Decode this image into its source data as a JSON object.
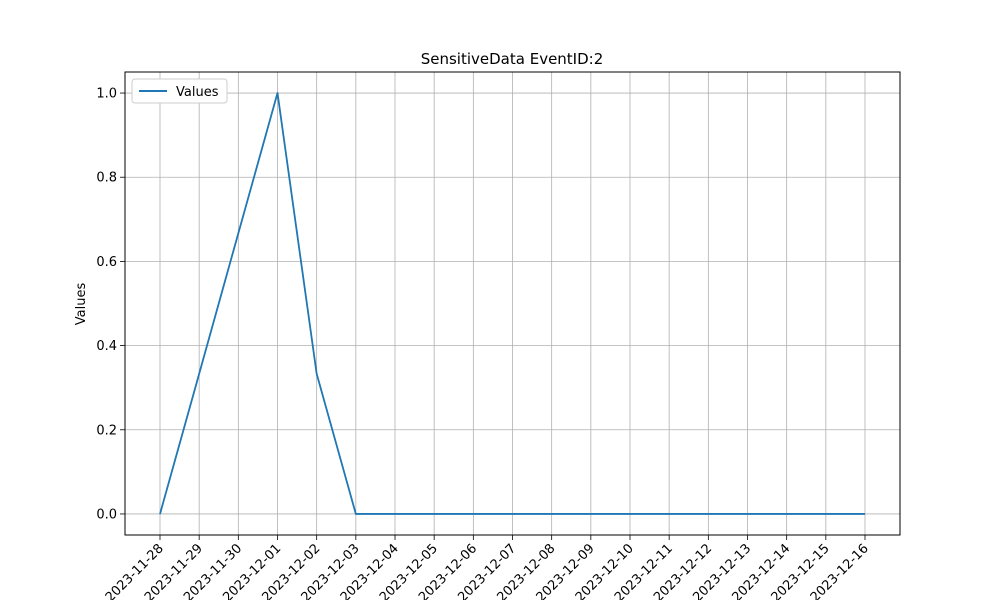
{
  "chart_data": {
    "type": "line",
    "title": "SensitiveData EventID:2",
    "xlabel": "",
    "ylabel": "Values",
    "x": [
      "2023-11-28",
      "2023-11-29",
      "2023-11-30",
      "2023-12-01",
      "2023-12-02",
      "2023-12-03",
      "2023-12-04",
      "2023-12-05",
      "2023-12-06",
      "2023-12-07",
      "2023-12-08",
      "2023-12-09",
      "2023-12-10",
      "2023-12-11",
      "2023-12-12",
      "2023-12-13",
      "2023-12-14",
      "2023-12-15",
      "2023-12-16"
    ],
    "series": [
      {
        "name": "Values",
        "color": "#1f77b4",
        "values": [
          0.0,
          0.333,
          0.667,
          1.0,
          0.333,
          0.0,
          0.0,
          0.0,
          0.0,
          0.0,
          0.0,
          0.0,
          0.0,
          0.0,
          0.0,
          0.0,
          0.0,
          0.0,
          0.0
        ]
      }
    ],
    "yticks": [
      "0.0",
      "0.2",
      "0.4",
      "0.6",
      "0.8",
      "1.0"
    ],
    "ylim": [
      -0.05,
      1.05
    ],
    "grid": true,
    "legend": "upper-left"
  }
}
